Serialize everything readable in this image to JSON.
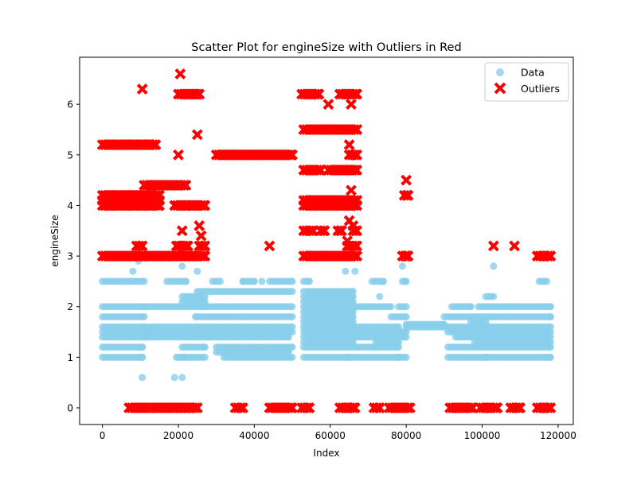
{
  "chart_data": {
    "type": "scatter",
    "title": "Scatter Plot for engineSize with Outliers in Red",
    "xlabel": "Index",
    "ylabel": "engineSize",
    "xlim": [
      -6000,
      124000
    ],
    "ylim": [
      -0.33,
      6.93
    ],
    "x_ticks": [
      0,
      20000,
      40000,
      60000,
      80000,
      100000,
      120000
    ],
    "x_tick_labels": [
      "0",
      "20000",
      "40000",
      "60000",
      "80000",
      "100000",
      "120000"
    ],
    "y_ticks": [
      0,
      1,
      2,
      3,
      4,
      5,
      6
    ],
    "y_tick_labels": [
      "0",
      "1",
      "2",
      "3",
      "4",
      "5",
      "6"
    ],
    "grid": false,
    "legend_position": "top-right",
    "series": [
      {
        "name": "Data",
        "color": "#87ceeb",
        "marker": "circle",
        "bands": [
          {
            "y": 1.0,
            "ranges": [
              [
                0,
                10500
              ],
              [
                20000,
                21500
              ],
              [
                21500,
                27000
              ],
              [
                32000,
                50000
              ],
              [
                53000,
                65000
              ],
              [
                65000,
                78000
              ],
              [
                78000,
                80000
              ],
              [
                91000,
                101000
              ],
              [
                101000,
                118000
              ]
            ]
          },
          {
            "y": 1.1,
            "ranges": [
              [
                30000,
                49000
              ]
            ]
          },
          {
            "y": 1.2,
            "ranges": [
              [
                0,
                10500
              ],
              [
                21000,
                27000
              ],
              [
                30000,
                50000
              ],
              [
                53000,
                78000
              ],
              [
                91000,
                118000
              ]
            ]
          },
          {
            "y": 1.3,
            "ranges": [
              [
                53000,
                66000
              ],
              [
                72000,
                78000
              ],
              [
                98000,
                118000
              ]
            ]
          },
          {
            "y": 1.4,
            "ranges": [
              [
                0,
                11000
              ],
              [
                11000,
                49000
              ],
              [
                53000,
                80000
              ],
              [
                93000,
                118000
              ]
            ]
          },
          {
            "y": 1.5,
            "ranges": [
              [
                0,
                11000
              ],
              [
                11000,
                27000
              ],
              [
                27000,
                50000
              ],
              [
                53000,
                80000
              ],
              [
                91000,
                118000
              ]
            ]
          },
          {
            "y": 1.6,
            "ranges": [
              [
                0,
                11000
              ],
              [
                11000,
                50000
              ],
              [
                53000,
                78000
              ],
              [
                80000,
                90000
              ],
              [
                91000,
                118000
              ]
            ]
          },
          {
            "y": 1.65,
            "ranges": [
              [
                80000,
                90000
              ]
            ]
          },
          {
            "y": 1.7,
            "ranges": [
              [
                53000,
                66000
              ],
              [
                97000,
                101000
              ]
            ]
          },
          {
            "y": 1.8,
            "ranges": [
              [
                0,
                11000
              ],
              [
                25000,
                50000
              ],
              [
                53000,
                66000
              ],
              [
                76000,
                80000
              ],
              [
                90000,
                118000
              ]
            ]
          },
          {
            "y": 1.9,
            "ranges": [
              [
                53000,
                66000
              ]
            ]
          },
          {
            "y": 2.0,
            "ranges": [
              [
                0,
                11000
              ],
              [
                11000,
                27000
              ],
              [
                27000,
                50000
              ],
              [
                53000,
                76000
              ],
              [
                78000,
                80000
              ],
              [
                92000,
                97000
              ],
              [
                99000,
                118000
              ]
            ]
          },
          {
            "y": 2.1,
            "ranges": [
              [
                21000,
                27000
              ],
              [
                53000,
                66000
              ]
            ]
          },
          {
            "y": 2.2,
            "ranges": [
              [
                21000,
                27000
              ],
              [
                53000,
                66000
              ],
              [
                101000,
                103000
              ]
            ]
          },
          {
            "y": 2.3,
            "ranges": [
              [
                25000,
                50000
              ],
              [
                53000,
                66000
              ]
            ]
          },
          {
            "y": 2.5,
            "ranges": [
              [
                0,
                11000
              ],
              [
                17000,
                22000
              ],
              [
                29000,
                31000
              ],
              [
                37000,
                40000
              ],
              [
                44000,
                50000
              ],
              [
                53000,
                54500
              ],
              [
                71000,
                74000
              ],
              [
                79000,
                80000
              ],
              [
                115000,
                117000
              ]
            ]
          }
        ],
        "points": [
          [
            10500,
            0.6
          ],
          [
            19000,
            0.6
          ],
          [
            21000,
            0.6
          ],
          [
            19500,
            1.0
          ],
          [
            21000,
            2.8
          ],
          [
            103000,
            2.8
          ],
          [
            8000,
            2.7
          ],
          [
            25000,
            2.7
          ],
          [
            9500,
            2.9
          ],
          [
            64000,
            2.7
          ],
          [
            66500,
            2.7
          ],
          [
            79500,
            2.5
          ],
          [
            79000,
            2.8
          ],
          [
            73000,
            2.2
          ],
          [
            37000,
            2.5
          ],
          [
            42000,
            2.5
          ],
          [
            24500,
            1.8
          ]
        ]
      },
      {
        "name": "Outliers",
        "color": "#ff0000",
        "marker": "x",
        "bands": [
          {
            "y": 0,
            "ranges": [
              [
                7000,
                25000
              ],
              [
                35000,
                37000
              ],
              [
                44000,
                50000
              ],
              [
                52500,
                54500
              ],
              [
                62500,
                66500
              ],
              [
                71500,
                73000
              ],
              [
                75500,
                81000
              ],
              [
                91500,
                97500
              ],
              [
                99500,
                104000
              ],
              [
                107500,
                110000
              ],
              [
                114500,
                118000
              ]
            ]
          },
          {
            "y": 3.0,
            "ranges": [
              [
                0,
                27000
              ],
              [
                53000,
                67000
              ],
              [
                79000,
                80500
              ],
              [
                114500,
                118000
              ]
            ]
          },
          {
            "y": 3.2,
            "ranges": [
              [
                9000,
                10500
              ],
              [
                20000,
                22500
              ],
              [
                25500,
                27000
              ],
              [
                64500,
                67000
              ]
            ]
          },
          {
            "y": 3.5,
            "ranges": [
              [
                53000,
                55500
              ],
              [
                57500,
                58500
              ],
              [
                62000,
                63000
              ],
              [
                66000,
                67000
              ]
            ]
          },
          {
            "y": 4.0,
            "ranges": [
              [
                0,
                15000
              ],
              [
                19000,
                22000
              ],
              [
                22500,
                27000
              ],
              [
                53000,
                67000
              ]
            ]
          },
          {
            "y": 4.1,
            "ranges": [
              [
                0,
                15000
              ],
              [
                53000,
                67000
              ]
            ]
          },
          {
            "y": 4.2,
            "ranges": [
              [
                0,
                15000
              ],
              [
                79500,
                80500
              ]
            ]
          },
          {
            "y": 4.4,
            "ranges": [
              [
                11000,
                22000
              ]
            ]
          },
          {
            "y": 4.7,
            "ranges": [
              [
                53000,
                57500
              ],
              [
                59500,
                67000
              ]
            ]
          },
          {
            "y": 5.0,
            "ranges": [
              [
                30000,
                50000
              ],
              [
                65000,
                67000
              ]
            ]
          },
          {
            "y": 5.2,
            "ranges": [
              [
                0,
                14000
              ]
            ]
          },
          {
            "y": 5.5,
            "ranges": [
              [
                53000,
                67000
              ]
            ]
          },
          {
            "y": 6.2,
            "ranges": [
              [
                52500,
                57000
              ],
              [
                62500,
                67000
              ],
              [
                20000,
                25500
              ]
            ]
          }
        ],
        "points": [
          [
            10500,
            6.3
          ],
          [
            20500,
            6.6
          ],
          [
            24500,
            6.2
          ],
          [
            25500,
            6.2
          ],
          [
            59500,
            6.0
          ],
          [
            65500,
            6.0
          ],
          [
            25000,
            5.4
          ],
          [
            20000,
            5.0
          ],
          [
            65000,
            5.2
          ],
          [
            65500,
            4.3
          ],
          [
            25500,
            3.6
          ],
          [
            21000,
            3.5
          ],
          [
            26000,
            3.4
          ],
          [
            64500,
            3.3
          ],
          [
            19500,
            3.2
          ],
          [
            44000,
            3.2
          ],
          [
            65000,
            3.7
          ],
          [
            66000,
            3.6
          ],
          [
            80000,
            4.5
          ],
          [
            103000,
            3.2
          ],
          [
            108500,
            3.2
          ],
          [
            80000,
            3.0
          ]
        ]
      }
    ]
  }
}
